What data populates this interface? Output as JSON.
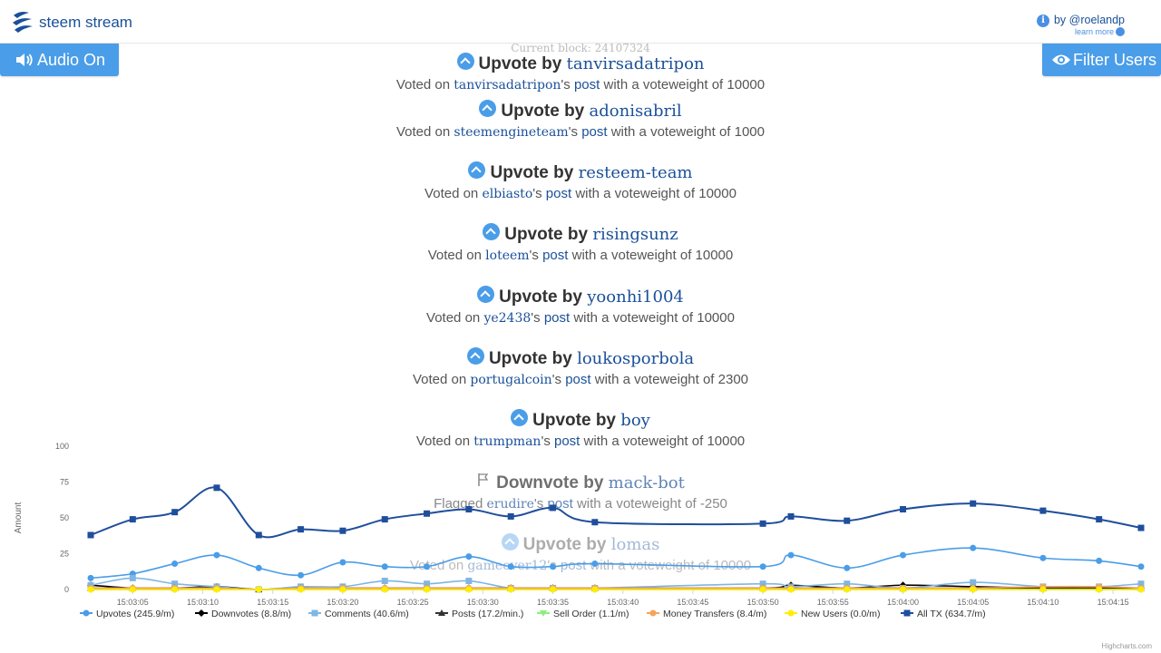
{
  "header": {
    "brand": "steem stream",
    "byline": "by @roelandp",
    "learn_more": "learn more"
  },
  "buttons": {
    "audio": "Audio On",
    "filter": "Filter Users"
  },
  "current_block": "Current block: 24107324",
  "stream": [
    {
      "kind": "upvote",
      "action": "Upvote by",
      "user": "tanvirsadatripon",
      "voted_on": "Voted on",
      "author": "tanvirsadatripon",
      "post_suffix": "'s",
      "post": "post",
      "weight_text": "with a voteweight of 10000"
    },
    {
      "kind": "upvote",
      "action": "Upvote by",
      "user": "adonisabril",
      "voted_on": "Voted on",
      "author": "steemengineteam",
      "post_suffix": "'s",
      "post": "post",
      "weight_text": "with a voteweight of 1000"
    },
    {
      "kind": "upvote",
      "action": "Upvote by",
      "user": "resteem-team",
      "voted_on": "Voted on",
      "author": "elbiasto",
      "post_suffix": "'s",
      "post": "post",
      "weight_text": "with a voteweight of 10000"
    },
    {
      "kind": "upvote",
      "action": "Upvote by",
      "user": "risingsunz",
      "voted_on": "Voted on",
      "author": "loteem",
      "post_suffix": "'s",
      "post": "post",
      "weight_text": "with a voteweight of 10000"
    },
    {
      "kind": "upvote",
      "action": "Upvote by",
      "user": "yoonhi1004",
      "voted_on": "Voted on",
      "author": "ye2438",
      "post_suffix": "'s",
      "post": "post",
      "weight_text": "with a voteweight of 10000"
    },
    {
      "kind": "upvote",
      "action": "Upvote by",
      "user": "loukosporbola",
      "voted_on": "Voted on",
      "author": "portugalcoin",
      "post_suffix": "'s",
      "post": "post",
      "weight_text": "with a voteweight of 2300"
    },
    {
      "kind": "upvote",
      "action": "Upvote by",
      "user": "boy",
      "voted_on": "Voted on",
      "author": "trumpman",
      "post_suffix": "'s",
      "post": "post",
      "weight_text": "with a voteweight of 10000"
    },
    {
      "kind": "downvote",
      "action": "Downvote by",
      "user": "mack-bot",
      "voted_on": "Flagged",
      "author": "erudire",
      "post_suffix": "'s",
      "post": "post",
      "weight_text": "with a voteweight of -250"
    },
    {
      "kind": "upvote",
      "action": "Upvote by",
      "user": "lomas",
      "voted_on": "Voted on",
      "author": "gameover12",
      "post_suffix": "'s",
      "post": "post",
      "weight_text": "with a voteweight of 10000"
    }
  ],
  "colors": {
    "accent": "#4a9de8",
    "link": "#1a5099"
  },
  "chart_data": {
    "type": "line",
    "ylabel": "Amount",
    "ylim": [
      0,
      100
    ],
    "yticks": [
      0,
      25,
      50,
      75,
      100
    ],
    "x": [
      "15:03:02",
      "15:03:05",
      "15:03:08",
      "15:03:11",
      "15:03:14",
      "15:03:17",
      "15:03:20",
      "15:03:23",
      "15:03:26",
      "15:03:29",
      "15:03:32",
      "15:03:35",
      "15:03:38",
      "15:03:50",
      "15:03:52",
      "15:03:56",
      "15:04:00",
      "15:04:05",
      "15:04:10",
      "15:04:14",
      "15:04:17"
    ],
    "xticks": [
      "15:03:05",
      "15:03:10",
      "15:03:15",
      "15:03:20",
      "15:03:25",
      "15:03:30",
      "15:03:35",
      "15:03:40",
      "15:03:45",
      "15:03:50",
      "15:03:55",
      "15:04:00",
      "15:04:05",
      "15:04:10",
      "15:04:15"
    ],
    "series": [
      {
        "name": "Upvotes (245.9/m)",
        "color": "#4a9de8",
        "marker": "circle",
        "values": [
          8,
          11,
          18,
          24,
          15,
          10,
          19,
          16,
          16,
          23,
          16,
          16,
          18,
          16,
          24,
          15,
          24,
          29,
          22,
          20,
          16
        ]
      },
      {
        "name": "Downvotes (8.8/m)",
        "color": "#000000",
        "marker": "diamond",
        "values": [
          3,
          1,
          1,
          2,
          0,
          1,
          1,
          1,
          1,
          1,
          1,
          1,
          1,
          1,
          3,
          1,
          3,
          2,
          1,
          1,
          1
        ]
      },
      {
        "name": "Comments (40.6/m)",
        "color": "#7fb6e3",
        "marker": "square",
        "values": [
          3,
          8,
          4,
          2,
          0,
          2,
          2,
          6,
          4,
          6,
          1,
          1,
          1,
          4,
          2,
          4,
          1,
          5,
          2,
          2,
          4
        ]
      },
      {
        "name": "Posts (17.2/min.)",
        "color": "#333333",
        "marker": "triangle",
        "values": [
          1,
          1,
          1,
          1,
          0,
          1,
          1,
          1,
          1,
          1,
          1,
          1,
          1,
          1,
          1,
          1,
          1,
          1,
          1,
          1,
          1
        ]
      },
      {
        "name": "Sell Order (1.1/m)",
        "color": "#90ed7d",
        "marker": "triangle-down",
        "values": [
          0,
          0,
          0,
          0,
          0,
          0,
          0,
          0,
          0,
          0,
          0,
          0,
          0,
          0,
          0,
          0,
          0,
          0,
          0,
          0,
          0
        ]
      },
      {
        "name": "Money Transfers (8.4/m)",
        "color": "#f7a35c",
        "marker": "circle",
        "values": [
          1,
          1,
          1,
          1,
          0,
          1,
          1,
          1,
          1,
          1,
          1,
          1,
          1,
          1,
          1,
          1,
          1,
          1,
          2,
          2,
          1
        ]
      },
      {
        "name": "New Users (0.0/m)",
        "color": "#ffee00",
        "marker": "circle",
        "values": [
          0,
          0,
          0,
          0,
          0,
          0,
          0,
          0,
          0,
          0,
          0,
          0,
          0,
          0,
          0,
          0,
          0,
          0,
          0,
          0,
          0
        ]
      },
      {
        "name": "All TX (634.7/m)",
        "color": "#1f4e9c",
        "marker": "square",
        "values": [
          38,
          49,
          54,
          71,
          38,
          42,
          41,
          49,
          53,
          56,
          51,
          57,
          47,
          46,
          51,
          48,
          56,
          60,
          55,
          49,
          43
        ]
      }
    ],
    "legend": "bottom",
    "credit": "Highcharts.com"
  }
}
